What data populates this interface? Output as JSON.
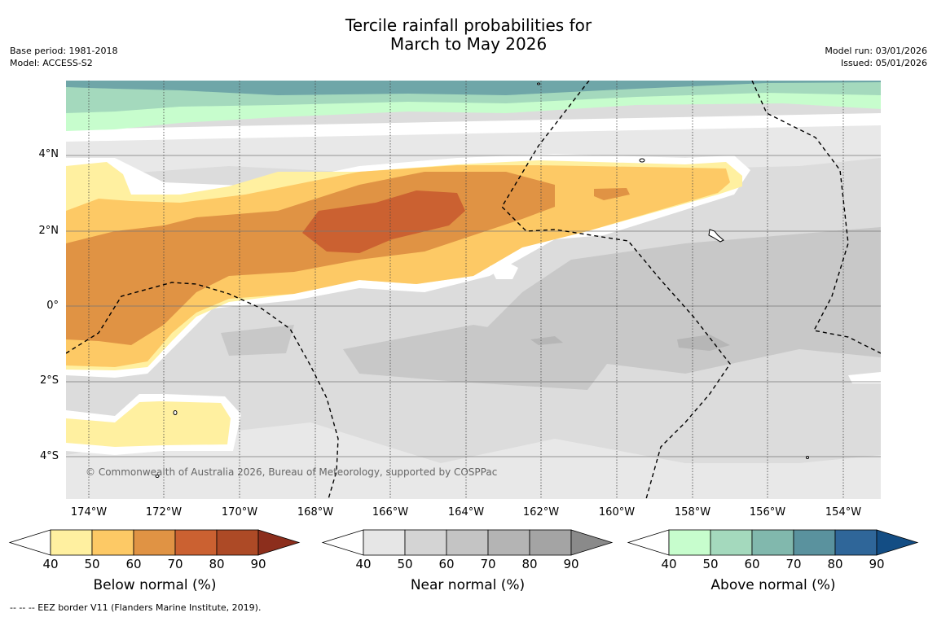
{
  "title": {
    "line1": "Tercile rainfall probabilities for",
    "line2": "March to May 2026"
  },
  "info_left": {
    "base_period": "Base period: 1981-2018",
    "model": "Model: ACCESS-S2"
  },
  "info_right": {
    "model_run": "Model run: 03/01/2026",
    "issued": "Issued: 05/01/2026"
  },
  "map": {
    "lon_labels": [
      "174°W",
      "172°W",
      "170°W",
      "168°W",
      "166°W",
      "164°W",
      "162°W",
      "160°W",
      "158°W",
      "156°W",
      "154°W"
    ],
    "lat_labels": [
      "4°N",
      "2°N",
      "0°",
      "2°S",
      "4°S"
    ],
    "copyright": "© Commonwealth of Australia 2026, Bureau of Meteorology, supported by COSPPac"
  },
  "legend": {
    "ticks": [
      "40",
      "50",
      "60",
      "70",
      "80",
      "90"
    ],
    "below": {
      "title": "Below normal (%)",
      "colors": [
        "#fff0a0",
        "#fdc965",
        "#e09344",
        "#cb6131",
        "#ad4a26",
        "#8c2e1c"
      ]
    },
    "near": {
      "title": "Near normal (%)",
      "colors": [
        "#e6e6e6",
        "#d4d4d4",
        "#c4c4c4",
        "#b4b4b4",
        "#a4a4a4",
        "#8a8a8a"
      ]
    },
    "above": {
      "title": "Above normal (%)",
      "colors": [
        "#c7fdcd",
        "#a4d9bd",
        "#81b8ad",
        "#5a929e",
        "#2f6699",
        "#134d84"
      ]
    }
  },
  "footnote": "--  --  -- EEZ border V11 (Flanders Marine Institute, 2019)."
}
